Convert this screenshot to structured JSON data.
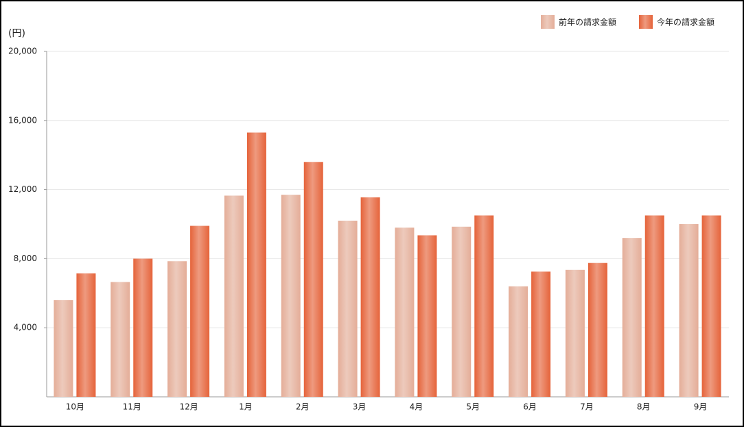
{
  "chart_data": {
    "type": "bar",
    "y_label": "(円)",
    "categories": [
      "10月",
      "11月",
      "12月",
      "1月",
      "2月",
      "3月",
      "4月",
      "5月",
      "6月",
      "7月",
      "8月",
      "9月"
    ],
    "series": [
      {
        "name": "前年の請求金額",
        "color": "#e4ad98",
        "values": [
          5600,
          6650,
          7850,
          11650,
          11700,
          10200,
          9800,
          9850,
          6400,
          7350,
          9200,
          10000
        ]
      },
      {
        "name": "今年の請求金額",
        "color": "#e5633a",
        "values": [
          7150,
          8000,
          9900,
          15300,
          13600,
          11550,
          9350,
          10500,
          7250,
          7750,
          10500,
          10500
        ]
      }
    ],
    "ylim": [
      0,
      20000
    ],
    "yticks": [
      {
        "value": 4000,
        "label": "4,000"
      },
      {
        "value": 8000,
        "label": "8,000"
      },
      {
        "value": 12000,
        "label": "12,000"
      },
      {
        "value": 16000,
        "label": "16,000"
      },
      {
        "value": 20000,
        "label": "20,000"
      }
    ],
    "grid": true,
    "legend": "top-right"
  }
}
